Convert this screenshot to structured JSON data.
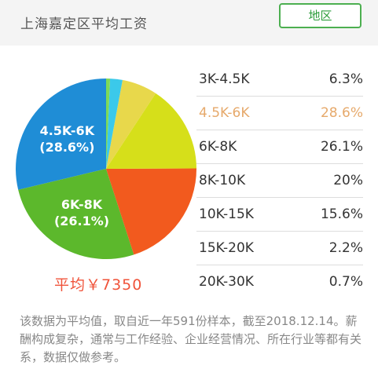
{
  "header": {
    "title": "上海嘉定区平均工资",
    "region_button_label": "地区"
  },
  "average": {
    "text": "平均￥7350"
  },
  "chart_data": {
    "type": "pie",
    "title": "",
    "slices": [
      {
        "label": "3K-4.5K",
        "percent_label": "6.3%",
        "value": 6.3,
        "color": "#e8d84b",
        "inner_label": ""
      },
      {
        "label": "4.5K-6K",
        "percent_label": "28.6%",
        "value": 28.6,
        "color": "#1f8dd6",
        "inner_label": "4.5K-6K",
        "inner_sub": "(28.6%)"
      },
      {
        "label": "6K-8K",
        "percent_label": "26.1%",
        "value": 26.1,
        "color": "#5cb82c",
        "inner_label": "6K-8K",
        "inner_sub": "(26.1%)"
      },
      {
        "label": "8K-10K",
        "percent_label": "20%",
        "value": 20,
        "color": "#f25a1e",
        "inner_label": ""
      },
      {
        "label": "10K-15K",
        "percent_label": "15.6%",
        "value": 15.6,
        "color": "#d6df1a",
        "inner_label": ""
      },
      {
        "label": "15K-20K",
        "percent_label": "2.2%",
        "value": 2.2,
        "color": "#3bc9ea",
        "inner_label": ""
      },
      {
        "label": "20K-30K",
        "percent_label": "0.7%",
        "value": 0.7,
        "color": "#7ed957",
        "inner_label": ""
      }
    ],
    "highlight_index": 1,
    "highlight_color": "#e6a96b",
    "legend_placement": "right"
  },
  "note": {
    "text": "该数据为平均值，取自近一年591份样本，截至2018.12.14。薪酬构成复杂，通常与工作经验、企业经营情况、所在行业等都有关系，数据仅做参考。"
  }
}
